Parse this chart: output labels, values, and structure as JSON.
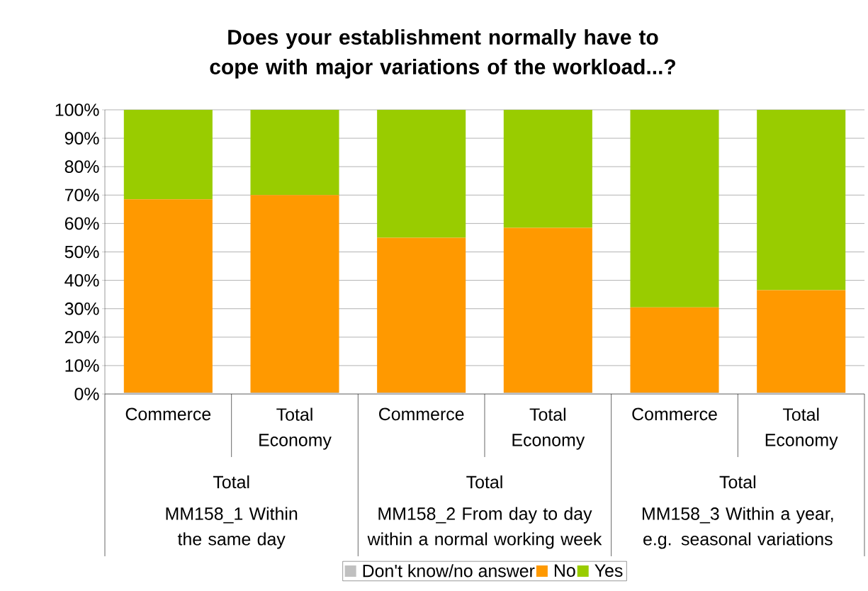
{
  "chart_data": {
    "type": "bar",
    "stacked": true,
    "title": "Does your establishment normally have to cope with major variations of the workload...?",
    "categories": [
      "Commerce",
      "Total Economy",
      "Commerce",
      "Total Economy",
      "Commerce",
      "Total Economy"
    ],
    "annotations": [
      "Total",
      "MM158_1 Within the same day",
      "Total",
      "MM158_2 From day to day within a normal working week",
      "Total",
      "MM158_3 Within a year, e.g. seasonal variations"
    ],
    "series": [
      {
        "name": "Don't know/no answer",
        "color": "#c0c0c0",
        "values": [
          0.5,
          0.5,
          0.5,
          0.5,
          0.5,
          0.5
        ]
      },
      {
        "name": "No",
        "color": "#ff9900",
        "values": [
          68,
          69.5,
          54.5,
          58,
          30,
          36
        ]
      },
      {
        "name": "Yes",
        "color": "#99cc00",
        "values": [
          31.5,
          30,
          45,
          41.5,
          69.5,
          63.5
        ]
      }
    ],
    "ylim": [
      0,
      100
    ],
    "yticks": [
      {
        "value": 0,
        "label": "0%"
      },
      {
        "value": 10,
        "label": "10%"
      },
      {
        "value": 20,
        "label": "20%"
      },
      {
        "value": 30,
        "label": "30%"
      },
      {
        "value": 40,
        "label": "40%"
      },
      {
        "value": 50,
        "label": "50%"
      },
      {
        "value": 60,
        "label": "60%"
      },
      {
        "value": 70,
        "label": "70%"
      },
      {
        "value": 80,
        "label": "80%"
      },
      {
        "value": 90,
        "label": "90%"
      },
      {
        "value": 100,
        "label": "100%"
      }
    ],
    "grid": "y",
    "legend": "bottom"
  }
}
